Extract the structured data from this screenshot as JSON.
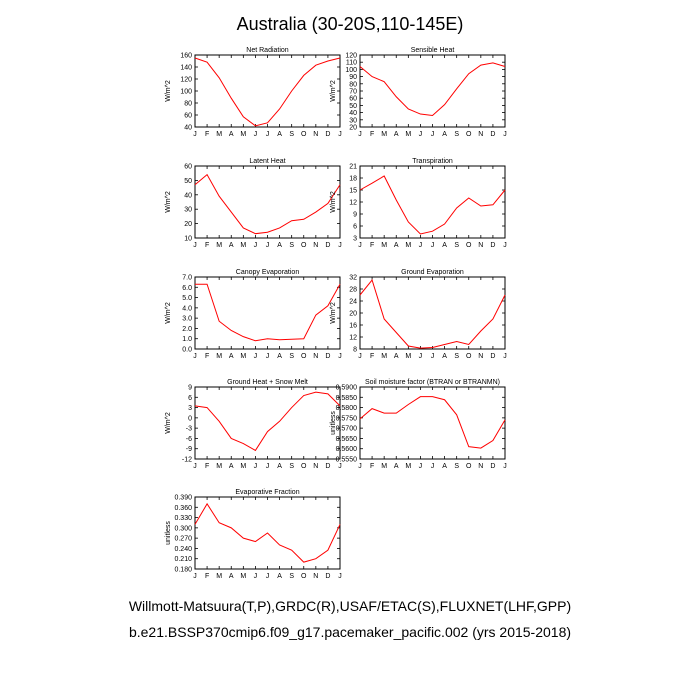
{
  "figure": {
    "title": "Australia (30-20S,110-145E)",
    "caption_line1": "Willmott-Matsuura(T,P),GRDC(R),USAF/ETAC(S),FLUXNET(LHF,GPP)",
    "caption_line2": "b.e21.BSSP370cmip6.f09_g17.pacemaker_pacific.002 (yrs 2015-2018)"
  },
  "chart_data": [
    {
      "type": "line",
      "title": "Net Radiation",
      "ylabel": "W/m^2",
      "categories": [
        "J",
        "F",
        "M",
        "A",
        "M",
        "J",
        "J",
        "A",
        "S",
        "O",
        "N",
        "D",
        "J"
      ],
      "ylim": [
        40,
        160
      ],
      "yticks": [
        "40",
        "60",
        "80",
        "100",
        "120",
        "140",
        "160"
      ],
      "values": [
        155,
        148,
        122,
        88,
        57,
        42,
        47,
        70,
        100,
        126,
        143,
        150,
        155
      ],
      "color": "#ff0000"
    },
    {
      "type": "line",
      "title": "Sensible Heat",
      "ylabel": "W/m^2",
      "categories": [
        "J",
        "F",
        "M",
        "A",
        "M",
        "J",
        "J",
        "A",
        "S",
        "O",
        "N",
        "D",
        "J"
      ],
      "ylim": [
        20,
        120
      ],
      "yticks": [
        "20",
        "30",
        "40",
        "50",
        "60",
        "70",
        "80",
        "90",
        "100",
        "110",
        "120"
      ],
      "values": [
        104,
        90,
        83,
        62,
        45,
        38,
        36,
        51,
        73,
        94,
        106,
        109,
        104
      ],
      "color": "#ff0000"
    },
    {
      "type": "line",
      "title": "Latent Heat",
      "ylabel": "W/m^2",
      "categories": [
        "J",
        "F",
        "M",
        "A",
        "M",
        "J",
        "J",
        "A",
        "S",
        "O",
        "N",
        "D",
        "J"
      ],
      "ylim": [
        10,
        60
      ],
      "yticks": [
        "10",
        "20",
        "30",
        "40",
        "50",
        "60"
      ],
      "values": [
        47,
        54,
        39,
        28,
        17,
        13,
        14,
        17,
        22,
        23,
        28,
        34,
        47
      ],
      "color": "#ff0000"
    },
    {
      "type": "line",
      "title": "Transpiration",
      "ylabel": "W/m^2",
      "categories": [
        "J",
        "F",
        "M",
        "A",
        "M",
        "J",
        "J",
        "A",
        "S",
        "O",
        "N",
        "D",
        "J"
      ],
      "ylim": [
        3,
        21
      ],
      "yticks": [
        "3",
        "6",
        "9",
        "12",
        "15",
        "18",
        "21"
      ],
      "values": [
        15,
        16.7,
        18.5,
        12.5,
        7,
        4,
        4.7,
        6.5,
        10.5,
        13,
        11,
        11.3,
        15
      ],
      "color": "#ff0000"
    },
    {
      "type": "line",
      "title": "Canopy Evaporation",
      "ylabel": "W/m^2",
      "categories": [
        "J",
        "F",
        "M",
        "A",
        "M",
        "J",
        "J",
        "A",
        "S",
        "O",
        "N",
        "D",
        "J"
      ],
      "ylim": [
        0,
        7
      ],
      "yticks": [
        "0.0",
        "1.0",
        "2.0",
        "3.0",
        "4.0",
        "5.0",
        "6.0",
        "7.0"
      ],
      "values": [
        6.3,
        6.3,
        2.7,
        1.8,
        1.2,
        0.8,
        1.0,
        0.9,
        0.95,
        1.0,
        3.3,
        4.2,
        6.3
      ],
      "color": "#ff0000"
    },
    {
      "type": "line",
      "title": "Ground Evaporation",
      "ylabel": "W/m^2",
      "categories": [
        "J",
        "F",
        "M",
        "A",
        "M",
        "J",
        "J",
        "A",
        "S",
        "O",
        "N",
        "D",
        "J"
      ],
      "ylim": [
        8,
        32
      ],
      "yticks": [
        "8",
        "12",
        "16",
        "20",
        "24",
        "28",
        "32"
      ],
      "values": [
        26,
        31,
        18,
        13.5,
        9,
        8.3,
        8.5,
        9.5,
        10.5,
        9.5,
        14,
        18,
        26
      ],
      "color": "#ff0000"
    },
    {
      "type": "line",
      "title": "Ground Heat + Snow Melt",
      "ylabel": "W/m^2",
      "categories": [
        "J",
        "F",
        "M",
        "A",
        "M",
        "J",
        "J",
        "A",
        "S",
        "O",
        "N",
        "D",
        "J"
      ],
      "ylim": [
        -12,
        9
      ],
      "yticks": [
        "-12",
        "-9",
        "-6",
        "-3",
        "0",
        "3",
        "6",
        "9"
      ],
      "values": [
        3.5,
        3,
        -1,
        -6,
        -7.5,
        -9.5,
        -4,
        -1,
        3,
        6.5,
        7.5,
        7,
        3.5
      ],
      "color": "#ff0000"
    },
    {
      "type": "line",
      "title": "Soil moisture factor (BTRAN or BTRANMN)",
      "ylabel": "unitless",
      "categories": [
        "J",
        "F",
        "M",
        "A",
        "M",
        "J",
        "J",
        "A",
        "S",
        "O",
        "N",
        "D",
        "J"
      ],
      "ylim": [
        0.555,
        0.59
      ],
      "yticks": [
        "0.5550",
        "0.5600",
        "0.5650",
        "0.5700",
        "0.5750",
        "0.5800",
        "0.5850",
        "0.5900"
      ],
      "values": [
        0.5745,
        0.5795,
        0.5773,
        0.5773,
        0.5815,
        0.5853,
        0.5853,
        0.5838,
        0.5765,
        0.561,
        0.5603,
        0.564,
        0.574
      ],
      "color": "#ff0000"
    },
    {
      "type": "line",
      "title": "Evaporative Fraction",
      "ylabel": "unitless",
      "categories": [
        "J",
        "F",
        "M",
        "A",
        "M",
        "J",
        "J",
        "A",
        "S",
        "O",
        "N",
        "D",
        "J"
      ],
      "ylim": [
        0.18,
        0.39
      ],
      "yticks": [
        "0.180",
        "0.210",
        "0.240",
        "0.270",
        "0.300",
        "0.330",
        "0.360",
        "0.390"
      ],
      "values": [
        0.31,
        0.37,
        0.315,
        0.3,
        0.27,
        0.26,
        0.285,
        0.25,
        0.235,
        0.2,
        0.21,
        0.235,
        0.31
      ],
      "color": "#ff0000"
    }
  ]
}
